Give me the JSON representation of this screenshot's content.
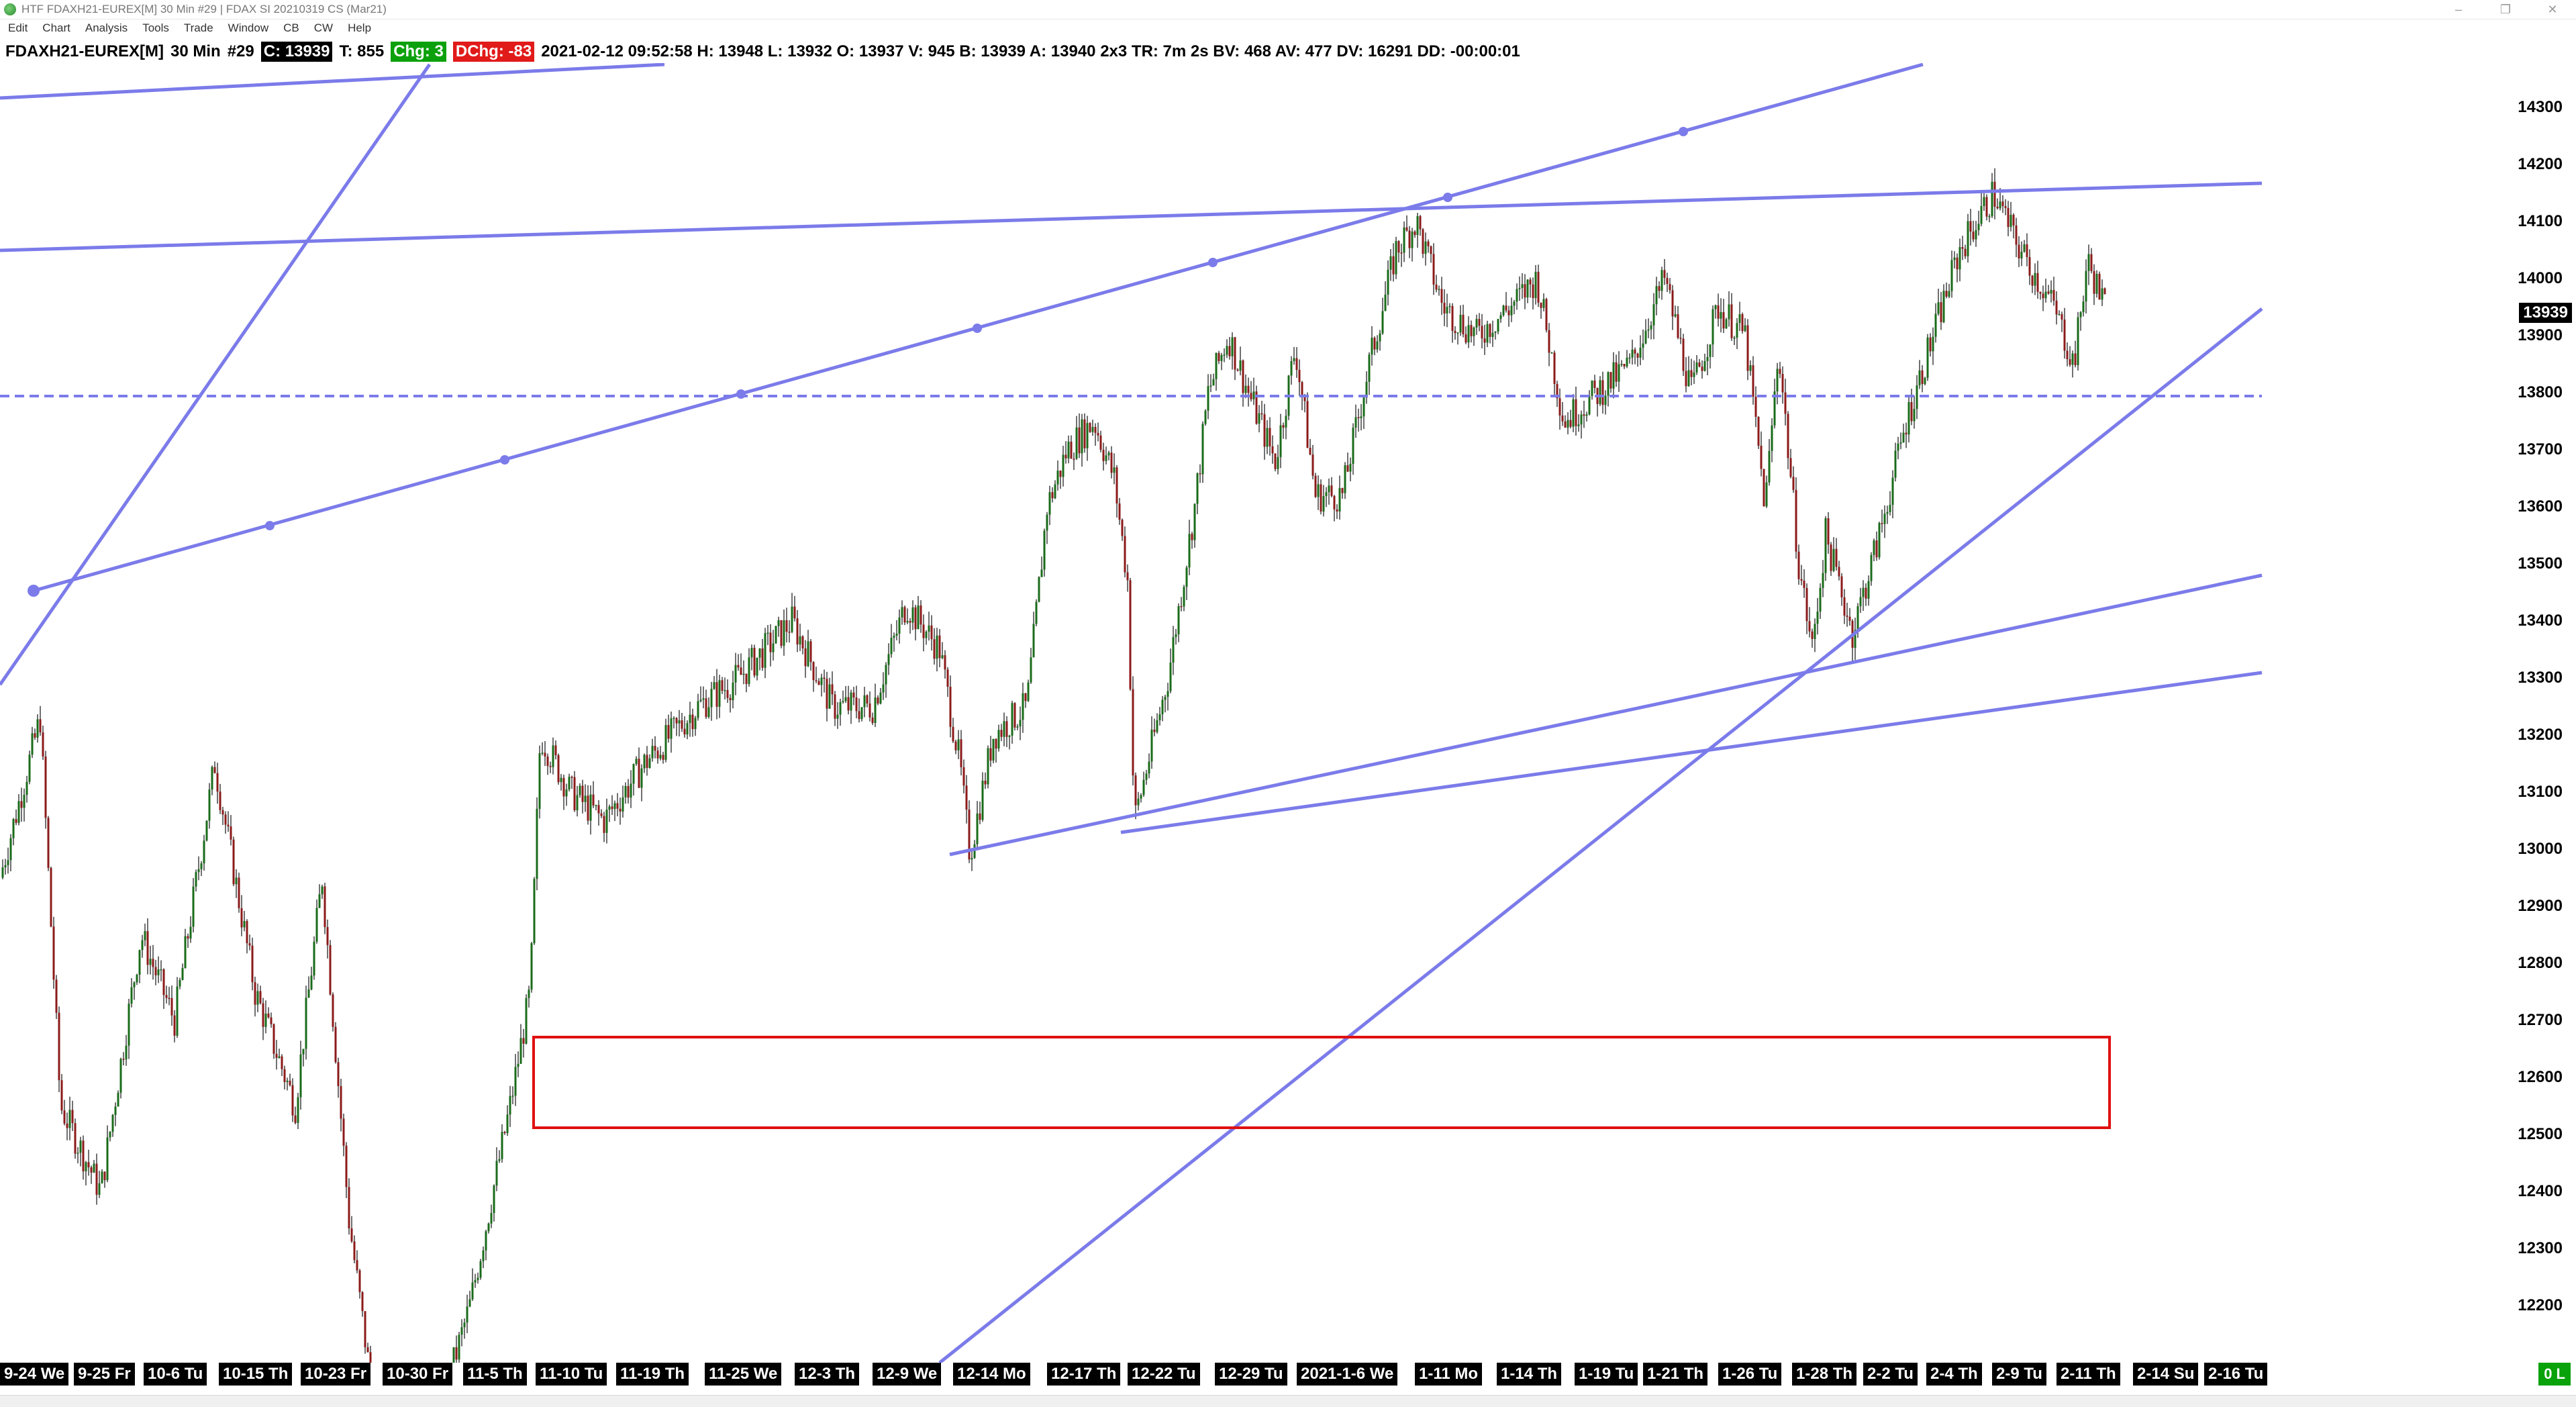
{
  "window": {
    "title": "HTF FDAXH21-EUREX[M]  30 Min  #29 | FDAX SI 20210319 CS (Mar21)",
    "controls": [
      "–",
      "❐",
      "✕"
    ]
  },
  "menu": [
    "Edit",
    "Chart",
    "Analysis",
    "Tools",
    "Trade",
    "Window",
    "CB",
    "CW",
    "Help"
  ],
  "info": {
    "symbol": "FDAXH21-EUREX[M]",
    "timeframe": "30 Min",
    "chart_number": "#29",
    "close": "C: 13939",
    "ticks": "T: 855",
    "change": "Chg: 3",
    "daily_change": "DChg: -83",
    "details": "2021-02-12 09:52:58 H: 13948 L: 13932 O: 13937 V: 945 B: 13939 A: 13940 2x3 TR: 7m 2s BV: 468 AV: 477 DV: 16291 DD: -00:00:01"
  },
  "colors": {
    "up_candle": "#1a6b1a",
    "down_candle": "#8b1a1a",
    "trendline": "#7b7bea",
    "zone_border": "#e01010",
    "pill_green": "#0ca10c",
    "pill_red": "#e11a1a"
  },
  "price_axis": {
    "labels": [
      "14300",
      "14200",
      "14100",
      "14000",
      "13900",
      "13800",
      "13700",
      "13600",
      "13500",
      "13400",
      "13300",
      "13200",
      "13100",
      "13000",
      "12900",
      "12800",
      "12700",
      "12600",
      "12500",
      "12400",
      "12300",
      "12200"
    ],
    "last_price": "13939"
  },
  "time_axis": {
    "labels": [
      "9-24 We",
      "9-25 Fr",
      "10-6 Tu",
      "10-15 Th",
      "10-23 Fr",
      "10-30 Fr",
      "11-5 Th",
      "11-10 Tu",
      "11-19 Th",
      "11-25 We",
      "12-3 Th",
      "12-9 We",
      "12-14 Mo",
      "12-17 Th",
      "12-22 Tu",
      "12-29 Tu",
      "2021-1-6 We",
      "1-11 Mo",
      "1-14 Th",
      "1-19 Tu",
      "1-21 Th",
      "1-26 Tu",
      "1-28 Th",
      "2-2 Tu",
      "2-4 Th",
      "2-9 Tu",
      "2-11 Th",
      "2-14 Su",
      "2-16 Tu"
    ]
  },
  "status": "0 L"
}
